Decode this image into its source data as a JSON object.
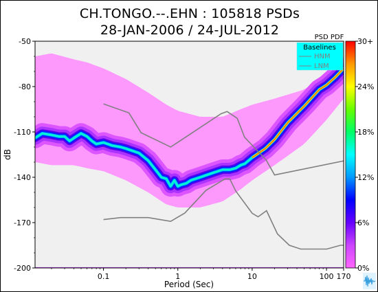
{
  "chart_data": {
    "type": "heatmap",
    "title": "CH.TONGO.--.EHN : 105818 PSDs",
    "subtitle": "28-JAN-2006 / 24-JUL-2012",
    "xlabel": "Period (Sec)",
    "ylabel": "dB",
    "x_scale": "log",
    "xlim": [
      0.012,
      170
    ],
    "ylim": [
      -200,
      -50
    ],
    "x_ticks": [
      {
        "value": 0.1,
        "label": "0.1"
      },
      {
        "value": 1,
        "label": "1"
      },
      {
        "value": 10,
        "label": "10"
      },
      {
        "value": 100,
        "label": "100"
      },
      {
        "value": 170,
        "label": "170"
      }
    ],
    "y_ticks": [
      {
        "value": -50,
        "label": "-50"
      },
      {
        "value": -80,
        "label": "-80"
      },
      {
        "value": -110,
        "label": "-110"
      },
      {
        "value": -140,
        "label": "-140"
      },
      {
        "value": -170,
        "label": "-170"
      },
      {
        "value": -200,
        "label": "-200"
      }
    ],
    "colorbar": {
      "label": "PSD PDF",
      "ticks": [
        {
          "value": 0,
          "label": "0%"
        },
        {
          "value": 6,
          "label": "6%"
        },
        {
          "value": 12,
          "label": "12%"
        },
        {
          "value": 18,
          "label": "18%"
        },
        {
          "value": 24,
          "label": "24%"
        },
        {
          "value": 30,
          "label": "30+"
        }
      ],
      "colors": [
        "#ff66ff",
        "#cc44ff",
        "#6600ff",
        "#0000ff",
        "#0099ff",
        "#00ffff",
        "#00ff66",
        "#66ff00",
        "#ffff00",
        "#ff9900",
        "#ff0000"
      ]
    },
    "legend": {
      "title": "Baselines",
      "entries": [
        "HNM",
        "LNM"
      ],
      "placement": "top-right",
      "background": "#00ffff"
    },
    "background_color": "#f0f0f0",
    "pdf_mode": {
      "name": "mode",
      "x": [
        0.012,
        0.015,
        0.02,
        0.025,
        0.03,
        0.035,
        0.04,
        0.05,
        0.06,
        0.07,
        0.08,
        0.1,
        0.13,
        0.17,
        0.2,
        0.3,
        0.4,
        0.5,
        0.6,
        0.7,
        0.8,
        0.9,
        1.0,
        1.1,
        1.3,
        1.5,
        2,
        3,
        4,
        5,
        6,
        7,
        8,
        10,
        15,
        20,
        30,
        50,
        80,
        100,
        130,
        170
      ],
      "y": [
        -114,
        -111,
        -112,
        -113,
        -113,
        -116,
        -114,
        -111,
        -113,
        -116,
        -118,
        -117,
        -119,
        -120,
        -121,
        -124,
        -129,
        -135,
        -140,
        -141,
        -146,
        -142,
        -146,
        -145,
        -144,
        -142,
        -140,
        -137,
        -135,
        -135,
        -134,
        -132,
        -131,
        -127,
        -121,
        -115,
        -104,
        -93,
        -82,
        -79,
        -74,
        -68
      ]
    },
    "pdf_spread": {
      "x": [
        0.012,
        0.02,
        0.04,
        0.06,
        0.1,
        0.2,
        0.4,
        0.7,
        1,
        2,
        4,
        7,
        10,
        20,
        50,
        100,
        170
      ],
      "upper": [
        -60,
        -58,
        -62,
        -64,
        -68,
        -75,
        -84,
        -92,
        -96,
        -100,
        -100,
        -95,
        -92,
        -88,
        -82,
        -72,
        -60
      ],
      "lower": [
        -130,
        -132,
        -132,
        -134,
        -136,
        -142,
        -150,
        -158,
        -160,
        -160,
        -156,
        -148,
        -142,
        -132,
        -118,
        -102,
        -88
      ]
    },
    "series": [
      {
        "name": "HNM",
        "color": "#808080",
        "x": [
          0.1,
          0.22,
          0.32,
          0.8,
          3.8,
          4.6,
          6.3,
          7.9,
          15.4,
          20,
          354.8
        ],
        "y": [
          -91.5,
          -97.4,
          -110.5,
          -120,
          -98,
          -96.5,
          -101,
          -113.5,
          -128.5,
          -138.5,
          -126
        ]
      },
      {
        "name": "LNM",
        "color": "#808080",
        "x": [
          0.1,
          0.17,
          0.4,
          0.8,
          1.24,
          2.4,
          4.3,
          5,
          6,
          10,
          12,
          15.6,
          21.9,
          31.6,
          45,
          70,
          101,
          154,
          328,
          600
        ],
        "y": [
          -168,
          -166.7,
          -166.7,
          -169.2,
          -163.7,
          -148.6,
          -141.1,
          -141.1,
          -149,
          -163.8,
          -166.2,
          -162.1,
          -177.5,
          -185,
          -187.5,
          -187.5,
          -187.5,
          -185,
          -185,
          -185
        ]
      }
    ]
  }
}
